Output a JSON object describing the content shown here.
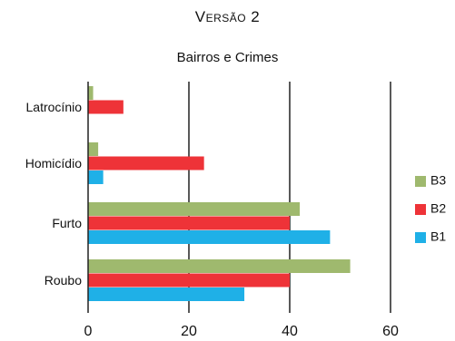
{
  "version_label": "Versão 2",
  "chart_data": {
    "type": "bar",
    "orientation": "horizontal",
    "title": "Bairros e Crimes",
    "categories": [
      "Latrocínio",
      "Homicídio",
      "Furto",
      "Roubo"
    ],
    "series": [
      {
        "name": "B3",
        "color": "#9fb96e",
        "values": [
          1,
          2,
          42,
          52
        ]
      },
      {
        "name": "B2",
        "color": "#ee3338",
        "values": [
          7,
          23,
          40,
          40
        ]
      },
      {
        "name": "B1",
        "color": "#1fb0e7",
        "values": [
          0,
          3,
          48,
          31
        ]
      }
    ],
    "xlim": [
      0,
      60
    ],
    "xticks": [
      0,
      20,
      40,
      60
    ],
    "grid": true,
    "legend_position": "right"
  }
}
